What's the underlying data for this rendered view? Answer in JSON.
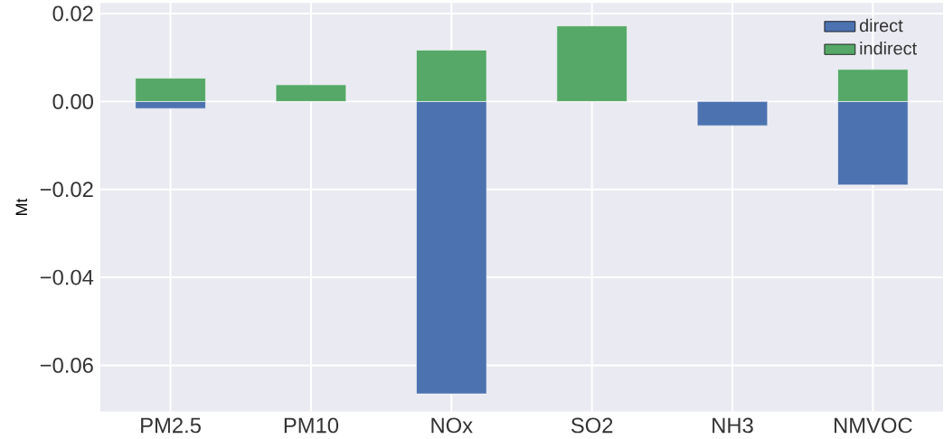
{
  "chart_data": {
    "type": "bar",
    "stacked": true,
    "ylabel": "Mt",
    "categories": [
      "PM2.5",
      "PM10",
      "NOx",
      "SO2",
      "NH3",
      "NMVOC"
    ],
    "series": [
      {
        "name": "direct",
        "color": "#4c72b0",
        "values": [
          -0.0016,
          0,
          -0.0665,
          0,
          -0.0055,
          -0.019
        ]
      },
      {
        "name": "indirect",
        "color": "#55a868",
        "values": [
          0.0053,
          0.0038,
          0.0117,
          0.0172,
          0,
          0.0073
        ]
      }
    ],
    "ylim": [
      -0.0705,
      0.0224
    ],
    "yticks": [
      0.02,
      {
        "value": 0,
        "label": "0.00"
      },
      {
        "value": -0.02,
        "label": "−0.02"
      },
      {
        "value": -0.04,
        "label": "−0.04"
      },
      {
        "value": -0.06,
        "label": "−0.06"
      }
    ],
    "grid": true,
    "legend": "top right"
  }
}
